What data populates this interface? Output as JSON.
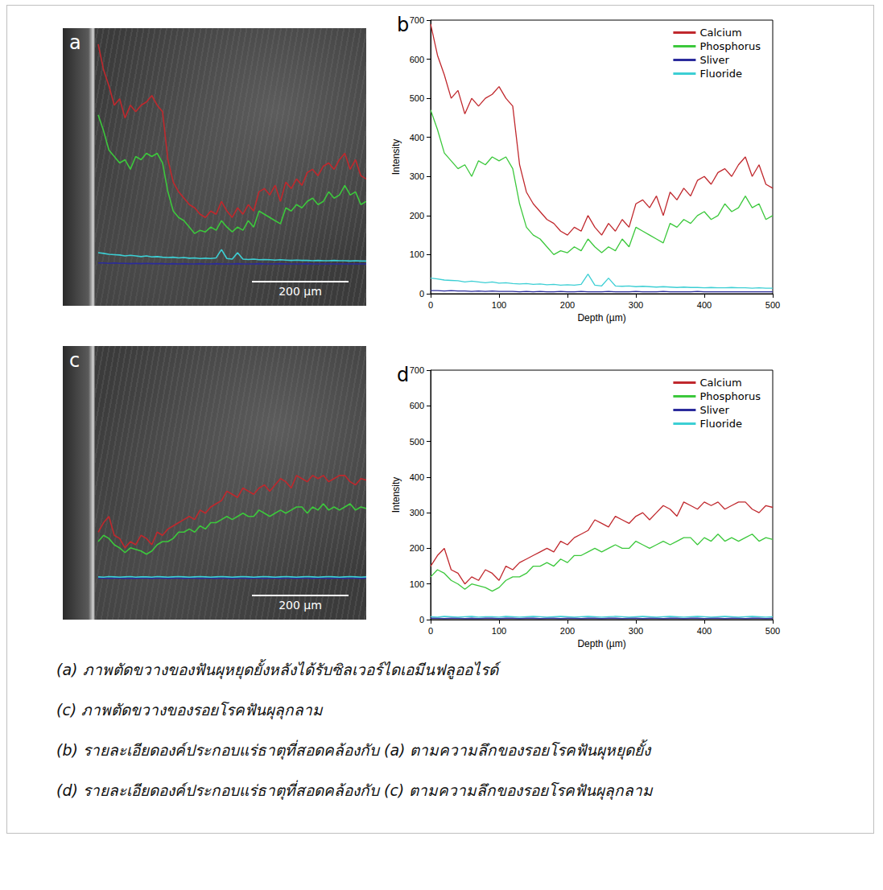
{
  "chart_data": [
    {
      "type": "line",
      "label": "b",
      "x_label": "Depth (µm)",
      "y_label": "Intensity",
      "xlim": [
        0,
        500
      ],
      "xticks": [
        0,
        100,
        200,
        300,
        400,
        500
      ],
      "ylim": [
        0,
        700
      ],
      "yticks": [
        0,
        100,
        200,
        300,
        400,
        500,
        600,
        700
      ],
      "grid": false,
      "legend": "top-right",
      "x": [
        0,
        10,
        20,
        30,
        40,
        50,
        60,
        70,
        80,
        90,
        100,
        110,
        120,
        130,
        140,
        150,
        160,
        170,
        180,
        190,
        200,
        210,
        220,
        230,
        240,
        250,
        260,
        270,
        280,
        290,
        300,
        310,
        320,
        330,
        340,
        350,
        360,
        370,
        380,
        390,
        400,
        410,
        420,
        430,
        440,
        450,
        460,
        470,
        480,
        490,
        500
      ],
      "series": [
        {
          "name": "Calcium",
          "color": "#c0282d",
          "values": [
            690,
            610,
            560,
            500,
            520,
            460,
            500,
            480,
            500,
            510,
            530,
            500,
            480,
            330,
            260,
            230,
            210,
            190,
            180,
            160,
            150,
            170,
            160,
            200,
            170,
            150,
            180,
            160,
            190,
            170,
            230,
            240,
            220,
            250,
            200,
            260,
            240,
            270,
            250,
            290,
            300,
            280,
            310,
            320,
            300,
            330,
            350,
            300,
            330,
            280,
            270
          ]
        },
        {
          "name": "Phosphorus",
          "color": "#3cc83c",
          "values": [
            470,
            420,
            360,
            340,
            320,
            330,
            300,
            340,
            330,
            350,
            340,
            350,
            320,
            230,
            170,
            150,
            140,
            120,
            100,
            110,
            105,
            120,
            110,
            140,
            120,
            105,
            120,
            110,
            140,
            120,
            170,
            160,
            150,
            140,
            130,
            180,
            170,
            190,
            180,
            200,
            210,
            190,
            200,
            230,
            210,
            220,
            250,
            220,
            230,
            190,
            200
          ]
        },
        {
          "name": "Sliver",
          "color": "#2b2b9c",
          "values": [
            8,
            8,
            7,
            8,
            7,
            7,
            6,
            7,
            6,
            7,
            6,
            6,
            6,
            5,
            6,
            5,
            6,
            5,
            5,
            6,
            5,
            5,
            6,
            5,
            5,
            5,
            6,
            5,
            5,
            5,
            6,
            5,
            5,
            5,
            6,
            5,
            5,
            5,
            5,
            6,
            5,
            5,
            5,
            5,
            5,
            5,
            5,
            5,
            5,
            5,
            5
          ]
        },
        {
          "name": "Fluoride",
          "color": "#3ccfd4",
          "values": [
            40,
            38,
            35,
            34,
            33,
            30,
            32,
            30,
            28,
            30,
            27,
            28,
            26,
            25,
            26,
            24,
            25,
            23,
            24,
            22,
            23,
            22,
            24,
            50,
            22,
            20,
            40,
            20,
            19,
            20,
            18,
            19,
            18,
            17,
            18,
            17,
            16,
            17,
            16,
            16,
            15,
            16,
            15,
            15,
            16,
            15,
            15,
            14,
            15,
            14,
            14
          ]
        }
      ]
    },
    {
      "type": "line",
      "label": "d",
      "x_label": "Depth (µm)",
      "y_label": "Intensity",
      "xlim": [
        0,
        500
      ],
      "xticks": [
        0,
        100,
        200,
        300,
        400,
        500
      ],
      "ylim": [
        0,
        700
      ],
      "yticks": [
        0,
        100,
        200,
        300,
        400,
        500,
        600,
        700
      ],
      "grid": false,
      "legend": "top-right",
      "x": [
        0,
        10,
        20,
        30,
        40,
        50,
        60,
        70,
        80,
        90,
        100,
        110,
        120,
        130,
        140,
        150,
        160,
        170,
        180,
        190,
        200,
        210,
        220,
        230,
        240,
        250,
        260,
        270,
        280,
        290,
        300,
        310,
        320,
        330,
        340,
        350,
        360,
        370,
        380,
        390,
        400,
        410,
        420,
        430,
        440,
        450,
        460,
        470,
        480,
        490,
        500
      ],
      "series": [
        {
          "name": "Calcium",
          "color": "#c0282d",
          "values": [
            150,
            180,
            200,
            140,
            130,
            100,
            120,
            110,
            140,
            130,
            110,
            150,
            140,
            160,
            170,
            180,
            190,
            200,
            190,
            220,
            210,
            230,
            240,
            250,
            280,
            270,
            260,
            290,
            280,
            270,
            290,
            300,
            280,
            300,
            320,
            310,
            290,
            330,
            320,
            310,
            330,
            320,
            330,
            310,
            320,
            330,
            330,
            310,
            300,
            320,
            315
          ]
        },
        {
          "name": "Phosphorus",
          "color": "#3cc83c",
          "values": [
            120,
            140,
            130,
            110,
            100,
            85,
            100,
            95,
            90,
            80,
            90,
            110,
            120,
            120,
            130,
            150,
            150,
            160,
            150,
            170,
            160,
            180,
            180,
            190,
            200,
            190,
            200,
            210,
            200,
            200,
            220,
            210,
            200,
            210,
            220,
            210,
            220,
            230,
            230,
            210,
            230,
            220,
            240,
            220,
            230,
            220,
            230,
            240,
            220,
            230,
            225
          ]
        },
        {
          "name": "Sliver",
          "color": "#2b2b9c",
          "values": [
            4,
            4,
            3,
            4,
            4,
            3,
            4,
            3,
            4,
            4,
            3,
            4,
            4,
            3,
            4,
            4,
            3,
            4,
            4,
            3,
            4,
            4,
            3,
            4,
            4,
            3,
            4,
            4,
            3,
            4,
            4,
            3,
            4,
            4,
            3,
            4,
            4,
            3,
            4,
            4,
            3,
            4,
            4,
            3,
            4,
            4,
            3,
            4,
            4,
            3,
            4
          ]
        },
        {
          "name": "Fluoride",
          "color": "#3ccfd4",
          "values": [
            8,
            7,
            9,
            8,
            7,
            8,
            9,
            7,
            8,
            8,
            7,
            9,
            8,
            7,
            8,
            9,
            8,
            7,
            8,
            9,
            8,
            7,
            8,
            9,
            8,
            7,
            8,
            9,
            8,
            7,
            8,
            9,
            8,
            7,
            8,
            9,
            8,
            7,
            8,
            9,
            8,
            7,
            8,
            9,
            8,
            7,
            8,
            9,
            8,
            7,
            8
          ]
        }
      ]
    }
  ],
  "images": [
    {
      "label": "a",
      "scale_bar": "200 µm"
    },
    {
      "label": "c",
      "scale_bar": "200 µm"
    }
  ],
  "captions": [
    "(a) ภาพตัดขวางของฟันผุหยุดยั้งหลังได้รับซิลเวอร์ไดเอมีนฟลูออไรด์",
    "(c) ภาพตัดขวางของรอยโรคฟันผุลุกลาม",
    "(b) รายละเอียดองค์ประกอบแร่ธาตุที่สอดคล้องกับ (a) ตามความลึกของรอยโรคฟันผุหยุดยั้ง",
    "(d) รายละเอียดองค์ประกอบแร่ธาตุที่สอดคล้องกับ (c) ตามความลึกของรอยโรคฟันผุลุกลาม"
  ]
}
